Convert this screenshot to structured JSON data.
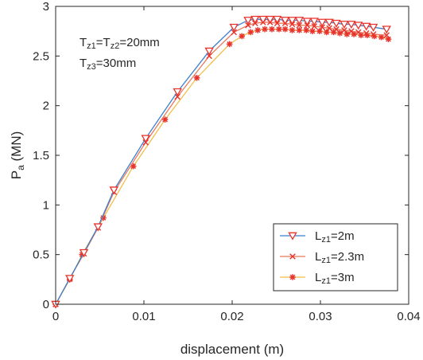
{
  "chart_data": {
    "type": "line",
    "xlabel": "displacement (m)",
    "ylabel_main": "P",
    "ylabel_sub": "a",
    "ylabel_unit": " (MN)",
    "xlim": [
      0,
      0.04
    ],
    "ylim": [
      0,
      3
    ],
    "xticks": [
      0,
      0.01,
      0.02,
      0.03,
      0.04
    ],
    "xtick_labels": [
      "0",
      "0.01",
      "0.02",
      "0.03",
      "0.04"
    ],
    "yticks": [
      0,
      0.5,
      1,
      1.5,
      2,
      2.5,
      3
    ],
    "ytick_labels": [
      "0",
      "0.5",
      "1",
      "1.5",
      "2",
      "2.5",
      "3"
    ],
    "grid": false,
    "legend_position": "bottom-right",
    "annotations": [
      {
        "parts": [
          [
            "T",
            "normal"
          ],
          [
            "z1",
            "sub"
          ],
          [
            "=T",
            "normal"
          ],
          [
            "z2",
            "sub"
          ],
          [
            "=20mm",
            "normal"
          ]
        ]
      },
      {
        "parts": [
          [
            "T",
            "normal"
          ],
          [
            "z3",
            "sub"
          ],
          [
            "=30mm",
            "normal"
          ]
        ]
      }
    ],
    "series": [
      {
        "name_parts": [
          [
            "L",
            "normal"
          ],
          [
            "z1",
            "sub"
          ],
          [
            "=2m",
            "normal"
          ]
        ],
        "line_color": "#3a7fd0",
        "marker": "triangle-down",
        "marker_color": "#e8322b",
        "marker_every": 1,
        "x": [
          0,
          0.0016,
          0.0032,
          0.0048,
          0.0066,
          0.0102,
          0.0138,
          0.0174,
          0.0202,
          0.0218,
          0.0226,
          0.0235,
          0.0243,
          0.0251,
          0.026,
          0.0268,
          0.0276,
          0.0285,
          0.0293,
          0.0302,
          0.031,
          0.0318,
          0.0327,
          0.0335,
          0.0343,
          0.0352,
          0.036,
          0.0375
        ],
        "y": [
          0,
          0.26,
          0.52,
          0.78,
          1.15,
          1.67,
          2.14,
          2.55,
          2.79,
          2.86,
          2.87,
          2.87,
          2.87,
          2.87,
          2.86,
          2.86,
          2.86,
          2.85,
          2.85,
          2.84,
          2.84,
          2.83,
          2.82,
          2.82,
          2.81,
          2.8,
          2.79,
          2.77
        ]
      },
      {
        "name_parts": [
          [
            "L",
            "normal"
          ],
          [
            "z1",
            "sub"
          ],
          [
            "=2.3m",
            "normal"
          ]
        ],
        "line_color": "#e8795c",
        "marker": "x",
        "marker_color": "#e8322b",
        "marker_every": 1,
        "x": [
          0,
          0.0016,
          0.0032,
          0.0048,
          0.0066,
          0.0102,
          0.0138,
          0.0174,
          0.0202,
          0.0218,
          0.0226,
          0.0235,
          0.0243,
          0.0251,
          0.026,
          0.0268,
          0.0276,
          0.0285,
          0.0293,
          0.0302,
          0.031,
          0.0318,
          0.0327,
          0.0335,
          0.0343,
          0.0352,
          0.036,
          0.0375
        ],
        "y": [
          0,
          0.26,
          0.51,
          0.77,
          1.13,
          1.63,
          2.09,
          2.5,
          2.74,
          2.81,
          2.83,
          2.84,
          2.84,
          2.83,
          2.83,
          2.82,
          2.81,
          2.81,
          2.8,
          2.79,
          2.78,
          2.77,
          2.76,
          2.75,
          2.74,
          2.73,
          2.72,
          2.71
        ]
      },
      {
        "name_parts": [
          [
            "L",
            "normal"
          ],
          [
            "z1",
            "sub"
          ],
          [
            "=3m",
            "normal"
          ]
        ],
        "line_color": "#f0bf4c",
        "marker": "asterisk",
        "marker_color": "#e8322b",
        "marker_every": 1,
        "x": [
          0,
          0.0016,
          0.003,
          0.0054,
          0.0088,
          0.0124,
          0.016,
          0.0197,
          0.0211,
          0.0221,
          0.0229,
          0.0237,
          0.0245,
          0.0253,
          0.026,
          0.0268,
          0.0276,
          0.0284,
          0.0291,
          0.0299,
          0.0307,
          0.0315,
          0.0322,
          0.033,
          0.0338,
          0.0346,
          0.0353,
          0.0361,
          0.0369,
          0.0377
        ],
        "y": [
          0,
          0.25,
          0.5,
          0.87,
          1.39,
          1.86,
          2.28,
          2.62,
          2.7,
          2.74,
          2.76,
          2.77,
          2.77,
          2.77,
          2.77,
          2.76,
          2.76,
          2.76,
          2.75,
          2.75,
          2.74,
          2.74,
          2.73,
          2.72,
          2.72,
          2.71,
          2.71,
          2.7,
          2.69,
          2.67
        ]
      }
    ]
  }
}
